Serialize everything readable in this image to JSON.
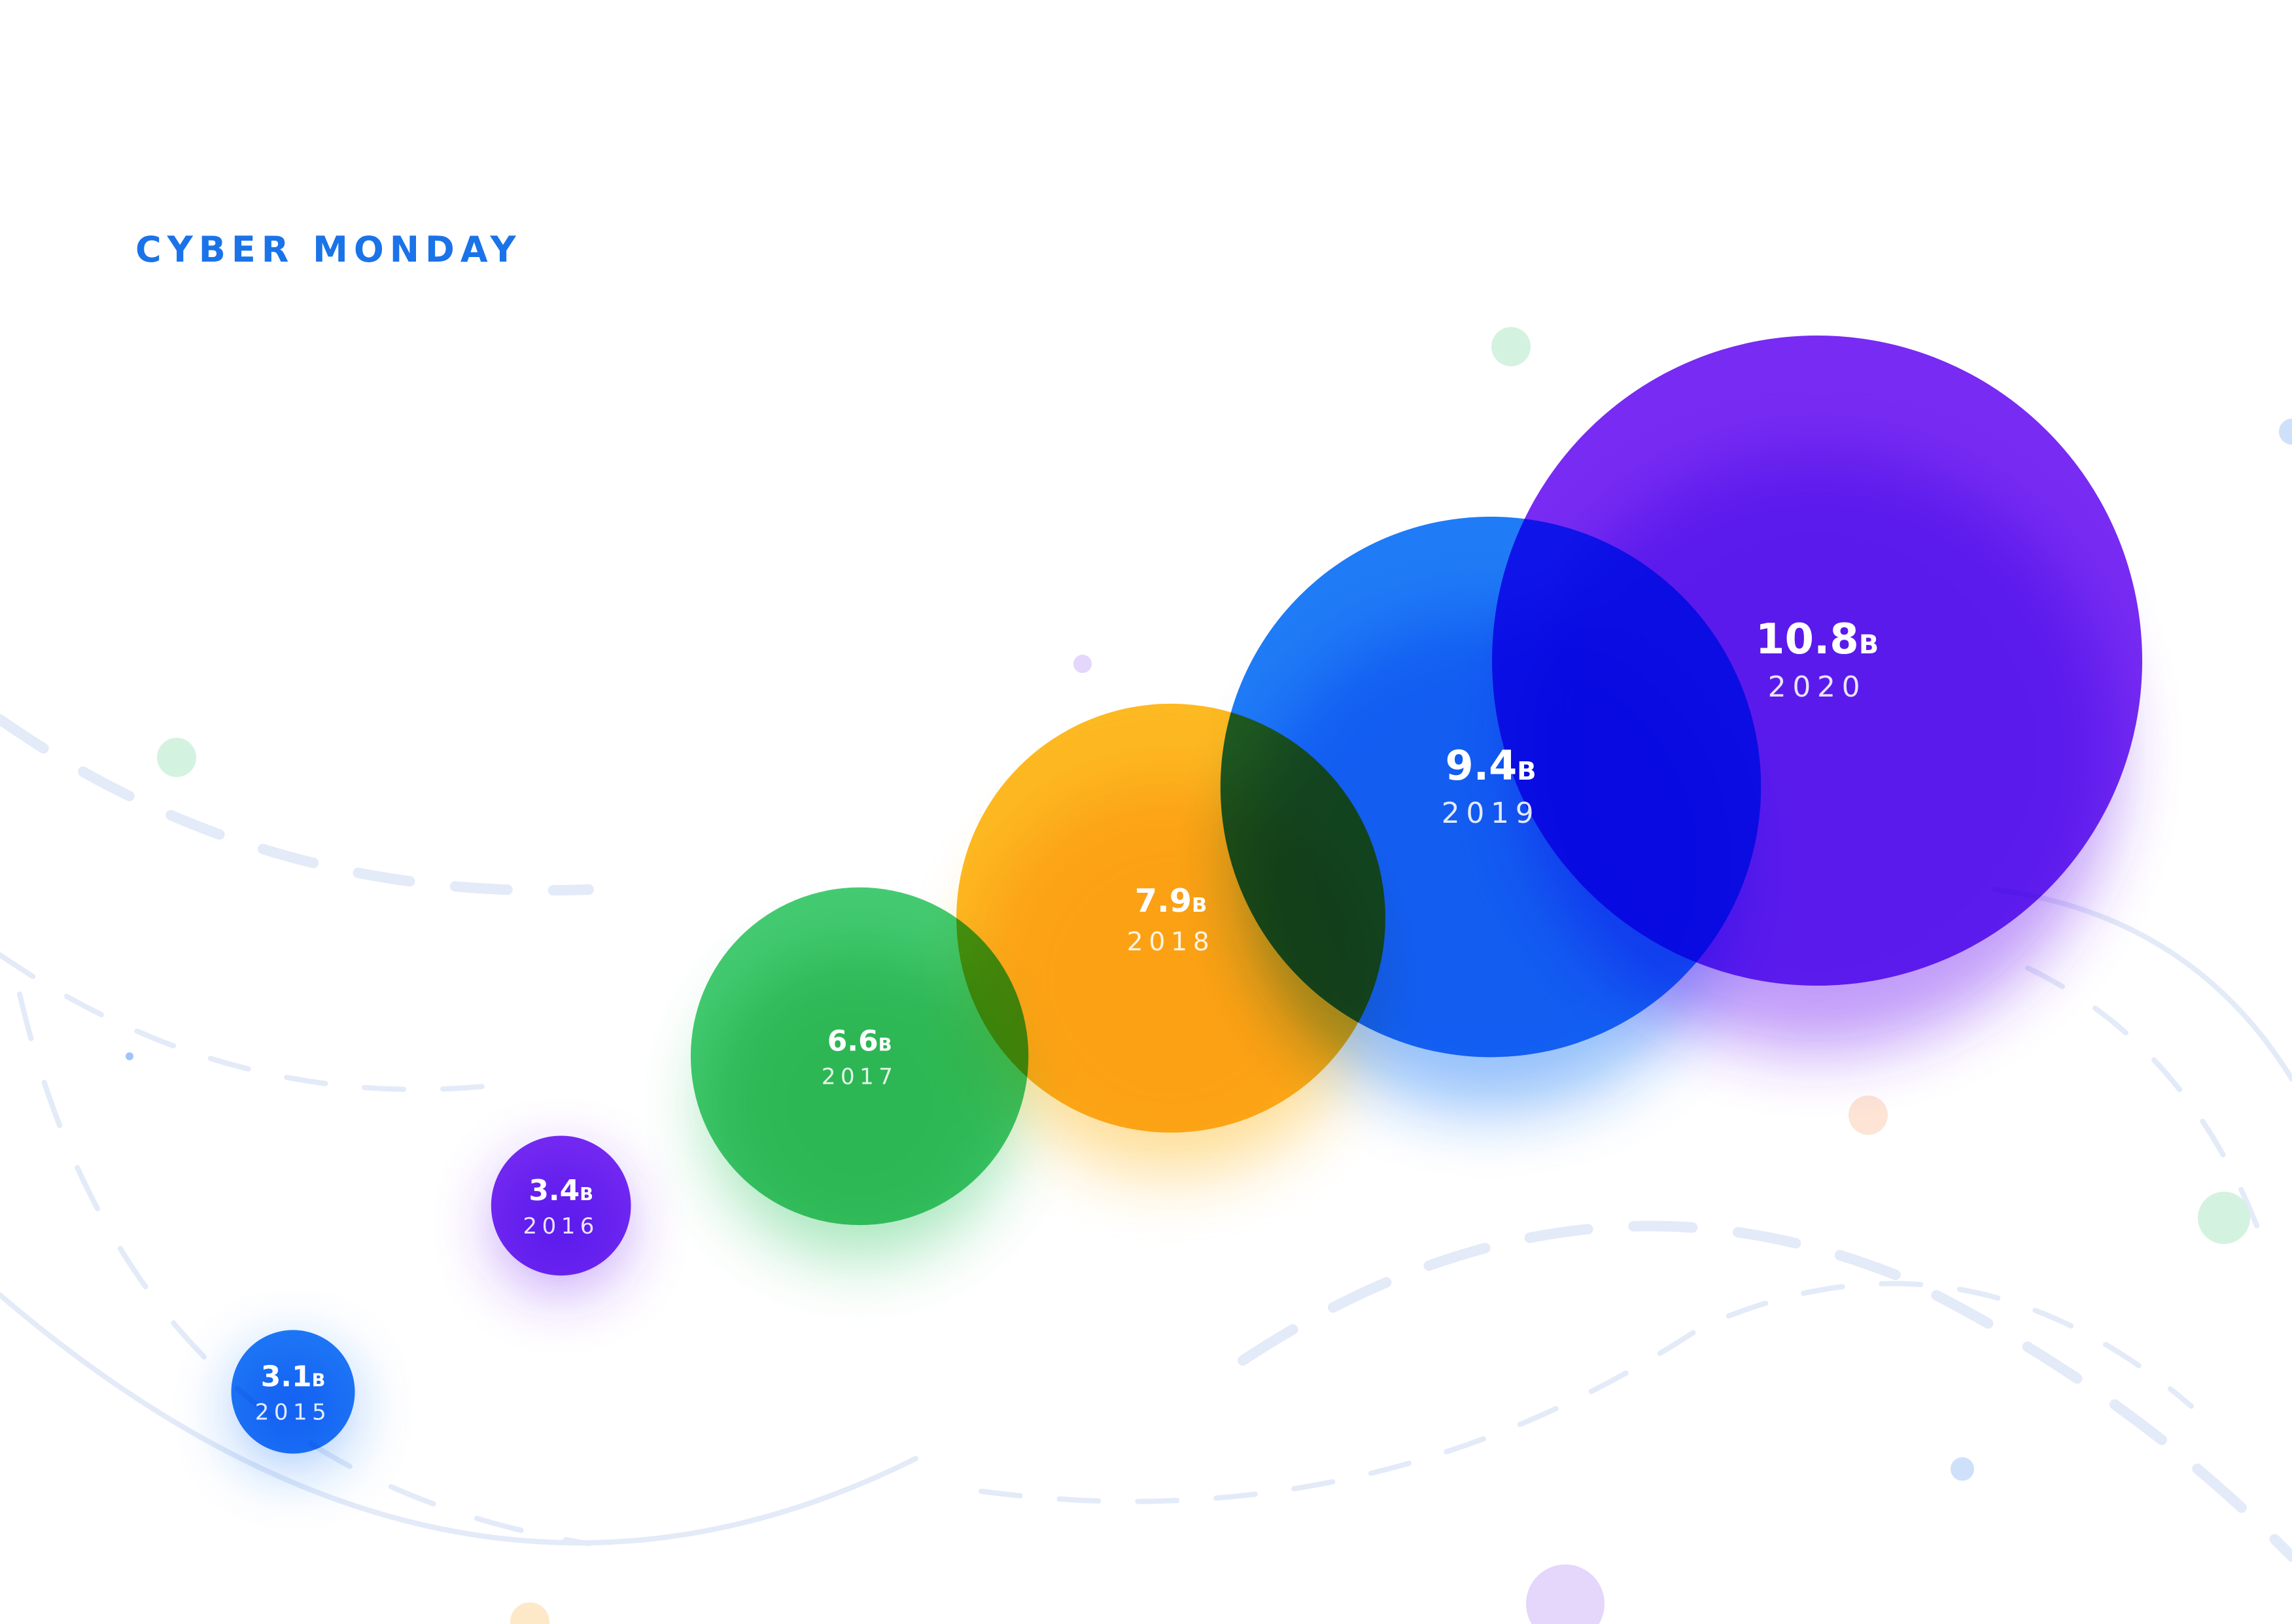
{
  "chart_data": {
    "type": "bubble",
    "title": "CYBER MONDAY",
    "unit": "B",
    "series": [
      {
        "year": "2015",
        "value": 3.1,
        "label": "3.1",
        "color": "#1877f6"
      },
      {
        "year": "2016",
        "value": 3.4,
        "label": "3.4",
        "color": "#7424f2"
      },
      {
        "year": "2017",
        "value": 6.6,
        "label": "6.6",
        "color": "#3ec96d"
      },
      {
        "year": "2018",
        "value": 7.9,
        "label": "7.9",
        "color": "#fdb71a"
      },
      {
        "year": "2019",
        "value": 9.4,
        "label": "9.4",
        "color": "#1877f6"
      },
      {
        "year": "2020",
        "value": 10.8,
        "label": "10.8",
        "color": "#7424f2"
      }
    ]
  }
}
